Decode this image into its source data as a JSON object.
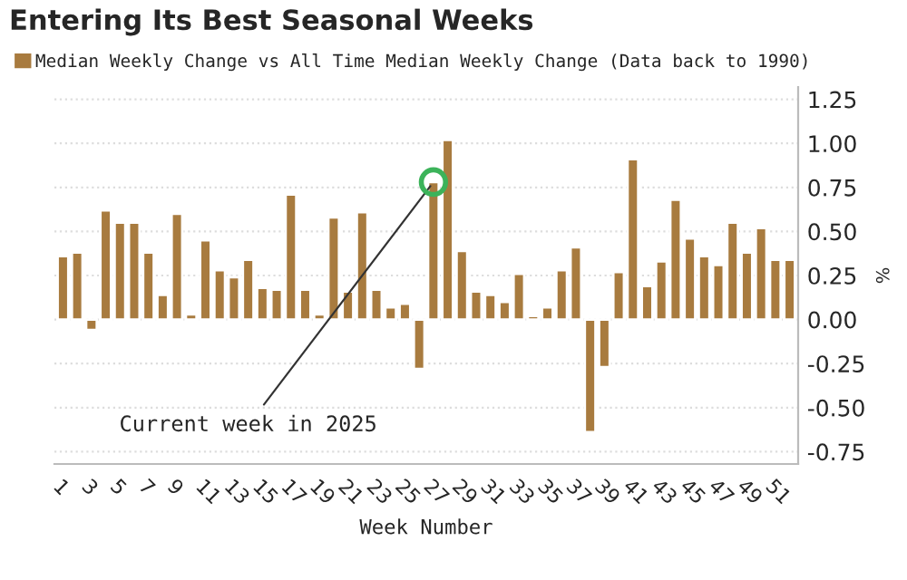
{
  "chart_data": {
    "type": "bar",
    "title": "Entering Its Best Seasonal Weeks",
    "categories": [
      "1",
      null,
      "3",
      null,
      "5",
      null,
      "7",
      null,
      "9",
      null,
      "11",
      null,
      "13",
      null,
      "15",
      null,
      "17",
      null,
      "19",
      null,
      "21",
      null,
      "23",
      null,
      "25",
      null,
      "27",
      null,
      "29",
      null,
      "31",
      null,
      "33",
      null,
      "35",
      null,
      "37",
      null,
      "39",
      null,
      "41",
      null,
      "43",
      null,
      "45",
      null,
      "47",
      null,
      "49",
      null,
      "51",
      null
    ],
    "series": [
      {
        "name": "Median Weekly Change vs All Time Median Weekly Change (Data back to 1990)",
        "color": "#a87b3f",
        "values": [
          0.36,
          0.38,
          -0.06,
          0.62,
          0.55,
          0.55,
          0.38,
          0.14,
          0.6,
          0.03,
          0.45,
          0.28,
          0.24,
          0.34,
          0.18,
          0.17,
          0.71,
          0.17,
          0.03,
          0.58,
          0.16,
          0.61,
          0.17,
          0.07,
          0.09,
          -0.28,
          0.78,
          1.02,
          0.39,
          0.16,
          0.14,
          0.1,
          0.26,
          0.02,
          0.07,
          0.28,
          0.41,
          -0.64,
          -0.27,
          0.27,
          0.91,
          0.19,
          0.33,
          0.68,
          0.46,
          0.36,
          0.31,
          0.55,
          0.38,
          0.52,
          0.34,
          0.34
        ]
      }
    ],
    "xlabel": "Week Number",
    "ylabel": "%",
    "ylim": [
      -0.82,
      1.32
    ],
    "yticks": [
      {
        "value": -0.75,
        "label": "-0.75"
      },
      {
        "value": -0.5,
        "label": "-0.50"
      },
      {
        "value": -0.25,
        "label": "-0.25"
      },
      {
        "value": 0,
        "label": "0.00"
      },
      {
        "value": 0.25,
        "label": "0.25"
      },
      {
        "value": 0.5,
        "label": "0.50"
      },
      {
        "value": 0.75,
        "label": "0.75"
      },
      {
        "value": 1,
        "label": "1.00"
      },
      {
        "value": 1.25,
        "label": "1.25"
      }
    ],
    "grid": "y",
    "legend": "top left",
    "annotations": [
      {
        "text": "Current week in 2025",
        "x": "27",
        "y": 0.78
      }
    ]
  }
}
